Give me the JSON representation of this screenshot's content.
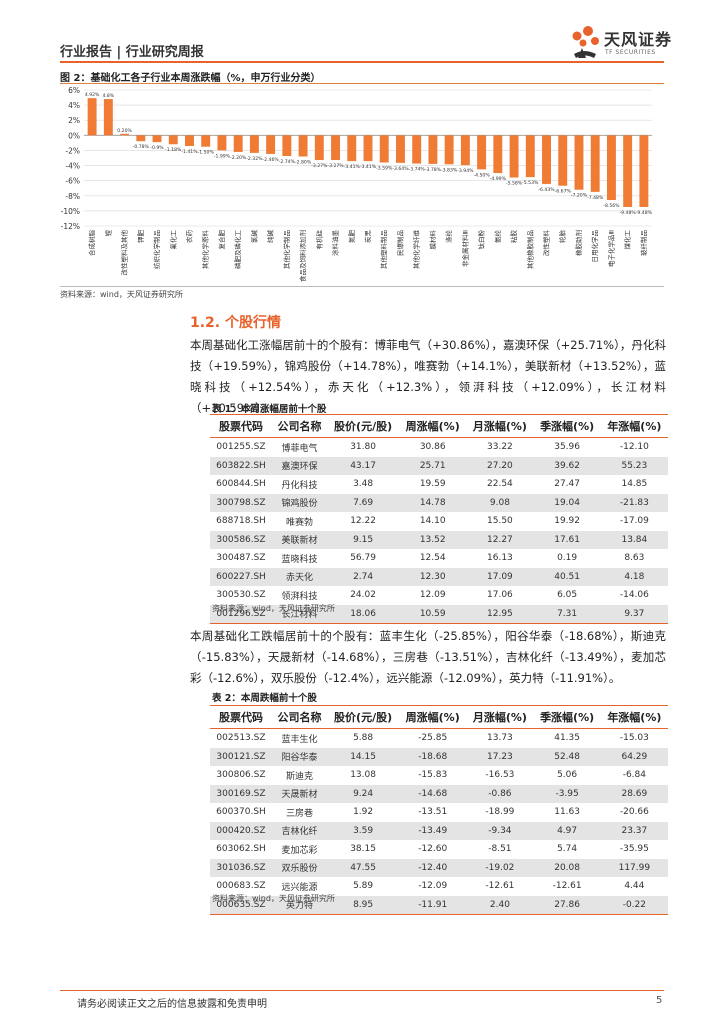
{
  "header": {
    "title": "行业报告 | 行业研究周报",
    "logo_cn": "天风证券",
    "logo_en": "TF SECURITIES"
  },
  "figure": {
    "title": "图 2：基础化工各子行业本周涨跌幅（%，申万行业分类）",
    "source": "资料来源：wind，天风证券研究所"
  },
  "chart_data": {
    "type": "bar",
    "title": "图 2：基础化工各子行业本周涨跌幅（%，申万行业分类）",
    "ylim": [
      -12,
      6
    ],
    "yticks": [
      "6%",
      "4%",
      "2%",
      "0%",
      "-2%",
      "-4%",
      "-6%",
      "-8%",
      "-10%",
      "-12%"
    ],
    "bar_color": "#f07b34",
    "categories": [
      "合成树脂",
      "锂",
      "改性塑料及其他",
      "钾肥",
      "纺织化学制品",
      "氟化工",
      "农药",
      "其他化学原料",
      "复合肥",
      "磷肥及磷化工",
      "氯碱",
      "纯碱",
      "其他化学制品",
      "食品及饲料添加剂",
      "有机硅",
      "涂料油墨",
      "氮肥",
      "炭黑",
      "其他塑料制品",
      "民爆制品",
      "其他化学纤维",
      "膜材料",
      "涤纶",
      "非金属材料Ⅲ",
      "钛白粉",
      "氨纶",
      "粘胶",
      "其他橡胶制品",
      "改性塑料",
      "轮胎",
      "橡胶助剂",
      "日用化学品",
      "电子化学品Ⅲ",
      "煤化工",
      "玻纤制品"
    ],
    "values": [
      4.92,
      4.8,
      0.2,
      -0.78,
      -0.9,
      -1.18,
      -1.41,
      -1.5,
      -1.99,
      -2.2,
      -2.32,
      -2.46,
      -2.74,
      -2.8,
      -3.27,
      -3.27,
      -3.41,
      -3.41,
      -3.59,
      -3.64,
      -3.74,
      -3.78,
      -3.83,
      -3.94,
      -4.5,
      -4.99,
      -5.58,
      -5.53,
      -6.43,
      -6.67,
      -7.2,
      -7.48,
      -8.56,
      -9.48,
      -9.48
    ],
    "labels": [
      "4.92%",
      "4.8%",
      "0.20%",
      "-0.78%",
      "-0.9%",
      "-1.18%",
      "-1.41%",
      "-1.50%",
      "-1.99%",
      "-2.20%",
      "-2.32%",
      "-2.46%",
      "-2.74%",
      "-2.80%",
      "-3.27%",
      "-3.27%",
      "-3.41%",
      "-3.41%",
      "-3.59%",
      "-3.64%",
      "-3.74%",
      "-3.78%",
      "-3.83%",
      "-3.94%",
      "-4.50%",
      "-4.99%",
      "-5.58%",
      "-5.53%",
      "-6.43%",
      "-6.67%",
      "-7.20%",
      "-7.48%",
      "-8.56%",
      "-9.48%",
      "-9.48%"
    ]
  },
  "section": {
    "title": "1.2. 个股行情",
    "para1": "本周基础化工涨幅居前十的个股有：博菲电气（+30.86%），嘉澳环保（+25.71%），丹化科技（+19.59%），锦鸡股份（+14.78%），唯赛勃（+14.1%），美联新材（+13.52%），蓝晓科技（+12.54%），赤天化（+12.3%），领湃科技（+12.09%），长江材料（+10.59%）。",
    "para2": "本周基础化工跌幅居前十的个股有：蓝丰生化（-25.85%），阳谷华泰（-18.68%），斯迪克（-15.83%），天晟新材（-14.68%），三房巷（-13.51%），吉林化纤（-13.49%），麦加芯彩（-12.6%），双乐股份（-12.4%），远兴能源（-12.09%），英力特（-11.91%）。"
  },
  "table1": {
    "title": "表 1：本周涨幅居前十个股",
    "headers": [
      "股票代码",
      "公司名称",
      "股价(元/股)",
      "周涨幅(%)",
      "月涨幅(%)",
      "季涨幅(%)",
      "年涨幅(%)"
    ],
    "rows": [
      [
        "001255.SZ",
        "博菲电气",
        "31.80",
        "30.86",
        "33.22",
        "35.96",
        "-12.10"
      ],
      [
        "603822.SH",
        "嘉澳环保",
        "43.17",
        "25.71",
        "27.20",
        "39.62",
        "55.23"
      ],
      [
        "600844.SH",
        "丹化科技",
        "3.48",
        "19.59",
        "22.54",
        "27.47",
        "14.85"
      ],
      [
        "300798.SZ",
        "锦鸡股份",
        "7.69",
        "14.78",
        "9.08",
        "19.04",
        "-21.83"
      ],
      [
        "688718.SH",
        "唯赛勃",
        "12.22",
        "14.10",
        "15.50",
        "19.92",
        "-17.09"
      ],
      [
        "300586.SZ",
        "美联新材",
        "9.15",
        "13.52",
        "12.27",
        "17.61",
        "13.84"
      ],
      [
        "300487.SZ",
        "蓝晓科技",
        "56.79",
        "12.54",
        "16.13",
        "0.19",
        "8.63"
      ],
      [
        "600227.SH",
        "赤天化",
        "2.74",
        "12.30",
        "17.09",
        "40.51",
        "4.18"
      ],
      [
        "300530.SZ",
        "领湃科技",
        "24.02",
        "12.09",
        "17.06",
        "6.05",
        "-14.06"
      ],
      [
        "001296.SZ",
        "长江材料",
        "18.06",
        "10.59",
        "12.95",
        "7.31",
        "9.37"
      ]
    ],
    "source": "资料来源：wind，天风证券研究所"
  },
  "table2": {
    "title": "表 2：本周跌幅前十个股",
    "headers": [
      "股票代码",
      "公司名称",
      "股价(元/股)",
      "周涨幅(%)",
      "月涨幅(%)",
      "季涨幅(%)",
      "年涨幅(%)"
    ],
    "rows": [
      [
        "002513.SZ",
        "蓝丰生化",
        "5.88",
        "-25.85",
        "13.73",
        "41.35",
        "-15.03"
      ],
      [
        "300121.SZ",
        "阳谷华泰",
        "14.15",
        "-18.68",
        "17.23",
        "52.48",
        "64.29"
      ],
      [
        "300806.SZ",
        "斯迪克",
        "13.08",
        "-15.83",
        "-16.53",
        "5.06",
        "-6.84"
      ],
      [
        "300169.SZ",
        "天晟新材",
        "9.24",
        "-14.68",
        "-0.86",
        "-3.95",
        "28.69"
      ],
      [
        "600370.SH",
        "三房巷",
        "1.92",
        "-13.51",
        "-18.99",
        "11.63",
        "-20.66"
      ],
      [
        "000420.SZ",
        "吉林化纤",
        "3.59",
        "-13.49",
        "-9.34",
        "4.97",
        "23.37"
      ],
      [
        "603062.SH",
        "麦加芯彩",
        "38.15",
        "-12.60",
        "-8.51",
        "5.74",
        "-35.95"
      ],
      [
        "301036.SZ",
        "双乐股份",
        "47.55",
        "-12.40",
        "-19.02",
        "20.08",
        "117.99"
      ],
      [
        "000683.SZ",
        "远兴能源",
        "5.89",
        "-12.09",
        "-12.61",
        "-12.61",
        "4.44"
      ],
      [
        "000635.SZ",
        "英力特",
        "8.95",
        "-11.91",
        "2.40",
        "27.86",
        "-0.22"
      ]
    ],
    "source": "资料来源：wind，天风证券研究所"
  },
  "footer": {
    "disclaimer": "请务必阅读正文之后的信息披露和免责申明",
    "page": "5"
  }
}
